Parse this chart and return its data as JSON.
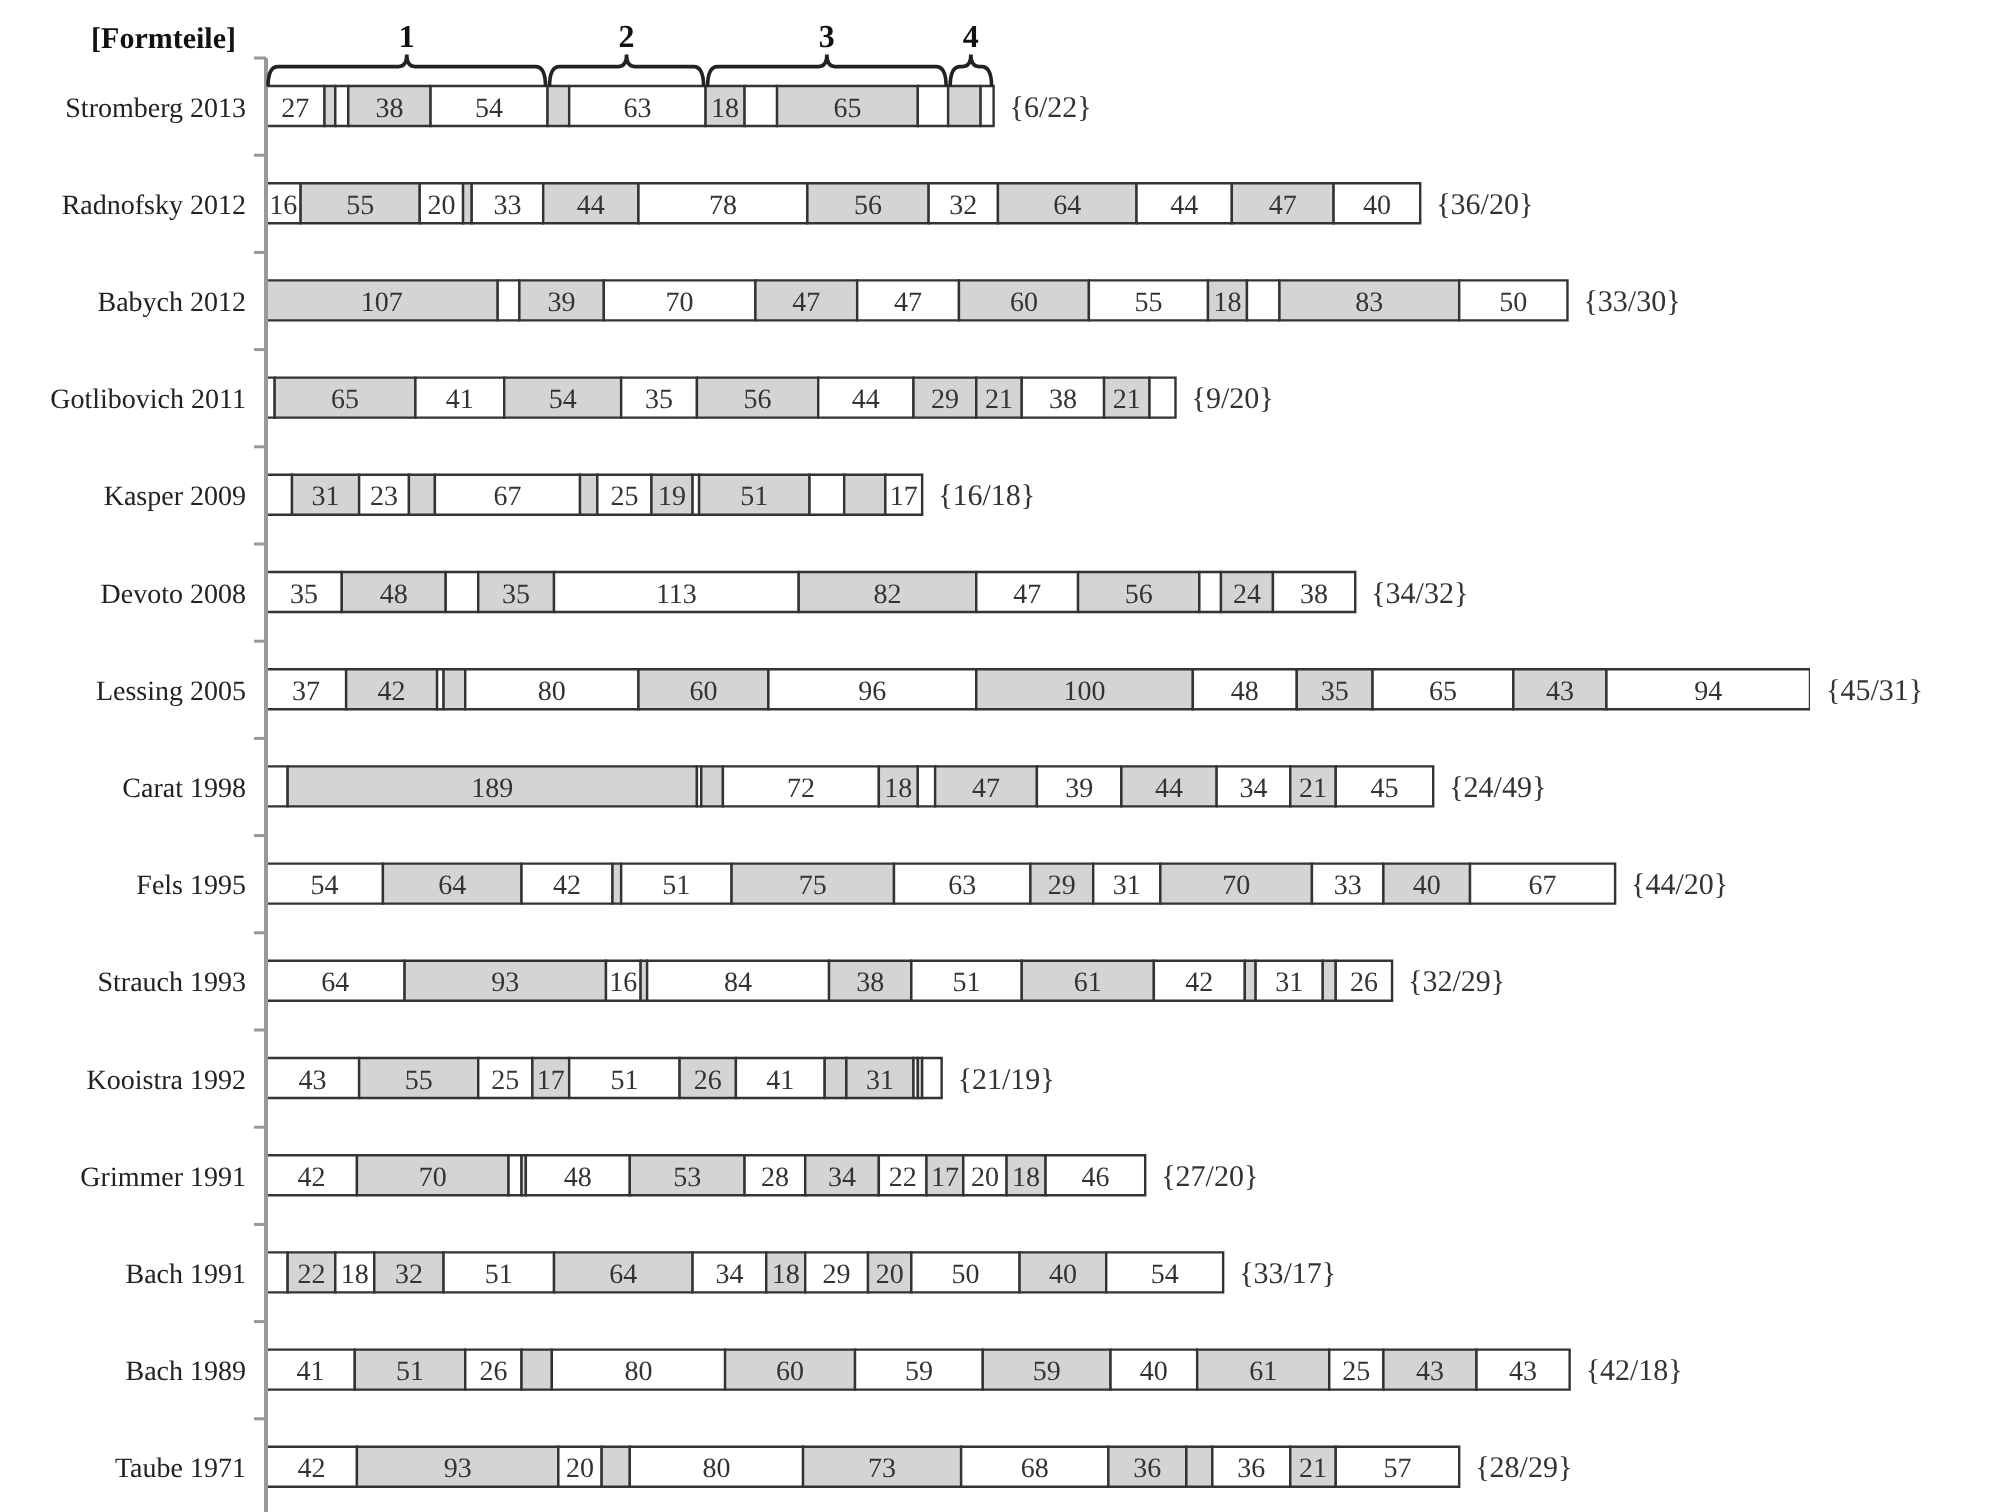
{
  "chart_data": {
    "type": "bar",
    "orientation": "horizontal",
    "stacked": true,
    "tick_labels": "y",
    "ylabel": "[Formteile]",
    "categories": [
      "Stromberg 2013",
      "Radnofsky 2012",
      "Babych 2012",
      "Gotlibovich 2011",
      "Kasper 2009",
      "Devoto 2008",
      "Lessing 2005",
      "Carat 1998",
      "Fels 1995",
      "Strauch 1993",
      "Kooistra 1992",
      "Grimmer 1991",
      "Bach 1991",
      "Bach 1989",
      "Taube 1971"
    ],
    "series": [
      {
        "values": [
          27,
          16,
          107,
          4,
          12,
          35,
          37,
          10,
          54,
          64,
          43,
          42,
          10,
          41,
          42
        ],
        "colors": [
          "#ffffff",
          "#ffffff",
          "#d4d4d4",
          "#ffffff",
          "#ffffff",
          "#ffffff",
          "#ffffff",
          "#ffffff",
          "#ffffff",
          "#ffffff",
          "#ffffff",
          "#ffffff",
          "#ffffff",
          "#ffffff",
          "#ffffff"
        ],
        "value_labels": [
          "27",
          "16",
          "107",
          null,
          null,
          "35",
          "37",
          null,
          "54",
          "64",
          "43",
          "42",
          null,
          "41",
          "42"
        ]
      },
      {
        "values": [
          5,
          55,
          10,
          65,
          31,
          48,
          42,
          189,
          64,
          93,
          55,
          70,
          22,
          51,
          93
        ],
        "colors": [
          "#d4d4d4",
          "#d4d4d4",
          "#ffffff",
          "#d4d4d4",
          "#d4d4d4",
          "#d4d4d4",
          "#d4d4d4",
          "#d4d4d4",
          "#d4d4d4",
          "#d4d4d4",
          "#d4d4d4",
          "#d4d4d4",
          "#d4d4d4",
          "#d4d4d4",
          "#d4d4d4"
        ],
        "value_labels": [
          null,
          "55",
          null,
          "65",
          "31",
          "48",
          "42",
          "189",
          "64",
          "93",
          "55",
          "70",
          "22",
          "51",
          "93"
        ]
      },
      {
        "values": [
          6,
          20,
          39,
          41,
          23,
          15,
          3,
          2,
          42,
          16,
          25,
          6,
          18,
          26,
          20
        ],
        "colors": [
          "#ffffff",
          "#ffffff",
          "#d4d4d4",
          "#ffffff",
          "#ffffff",
          "#ffffff",
          "#ffffff",
          "#ffffff",
          "#ffffff",
          "#ffffff",
          "#ffffff",
          "#ffffff",
          "#ffffff",
          "#ffffff",
          "#ffffff"
        ],
        "value_labels": [
          null,
          "20",
          "39",
          "41",
          "23",
          null,
          null,
          null,
          "42",
          "16",
          "25",
          null,
          "18",
          "26",
          "20"
        ]
      },
      {
        "values": [
          38,
          4,
          70,
          54,
          12,
          35,
          10,
          10,
          4,
          3,
          17,
          2,
          32,
          14,
          13
        ],
        "colors": [
          "#d4d4d4",
          "#d4d4d4",
          "#ffffff",
          "#d4d4d4",
          "#d4d4d4",
          "#d4d4d4",
          "#d4d4d4",
          "#d4d4d4",
          "#d4d4d4",
          "#d4d4d4",
          "#d4d4d4",
          "#d4d4d4",
          "#d4d4d4",
          "#d4d4d4",
          "#d4d4d4"
        ],
        "value_labels": [
          "38",
          null,
          "70",
          "54",
          null,
          "35",
          null,
          null,
          null,
          null,
          "17",
          null,
          "32",
          null,
          null
        ]
      },
      {
        "values": [
          54,
          33,
          47,
          35,
          67,
          113,
          80,
          72,
          51,
          84,
          51,
          48,
          51,
          80,
          80
        ],
        "colors": [
          "#ffffff",
          "#ffffff",
          "#d4d4d4",
          "#ffffff",
          "#ffffff",
          "#ffffff",
          "#ffffff",
          "#ffffff",
          "#ffffff",
          "#ffffff",
          "#ffffff",
          "#ffffff",
          "#ffffff",
          "#ffffff",
          "#ffffff"
        ],
        "value_labels": [
          "54",
          "33",
          "47",
          "35",
          "67",
          "113",
          "80",
          "72",
          "51",
          "84",
          "51",
          "48",
          "51",
          "80",
          "80"
        ]
      },
      {
        "values": [
          10,
          44,
          47,
          56,
          8,
          82,
          60,
          18,
          75,
          38,
          26,
          53,
          64,
          60,
          73
        ],
        "colors": [
          "#d4d4d4",
          "#d4d4d4",
          "#ffffff",
          "#d4d4d4",
          "#d4d4d4",
          "#d4d4d4",
          "#d4d4d4",
          "#d4d4d4",
          "#d4d4d4",
          "#d4d4d4",
          "#d4d4d4",
          "#d4d4d4",
          "#d4d4d4",
          "#d4d4d4",
          "#d4d4d4"
        ],
        "value_labels": [
          null,
          "44",
          "47",
          "56",
          null,
          "82",
          "60",
          "18",
          "75",
          "38",
          "26",
          "53",
          "64",
          "60",
          "73"
        ]
      },
      {
        "values": [
          63,
          78,
          60,
          44,
          25,
          47,
          96,
          8,
          63,
          51,
          41,
          28,
          34,
          59,
          68
        ],
        "colors": [
          "#ffffff",
          "#ffffff",
          "#d4d4d4",
          "#ffffff",
          "#ffffff",
          "#ffffff",
          "#ffffff",
          "#ffffff",
          "#ffffff",
          "#ffffff",
          "#ffffff",
          "#ffffff",
          "#ffffff",
          "#ffffff",
          "#ffffff"
        ],
        "value_labels": [
          "63",
          "78",
          "60",
          "44",
          "25",
          "47",
          "96",
          null,
          "63",
          "51",
          "41",
          "28",
          "34",
          "59",
          "68"
        ]
      },
      {
        "values": [
          18,
          56,
          55,
          29,
          19,
          56,
          100,
          47,
          29,
          61,
          10,
          34,
          18,
          59,
          36
        ],
        "colors": [
          "#d4d4d4",
          "#d4d4d4",
          "#ffffff",
          "#d4d4d4",
          "#d4d4d4",
          "#d4d4d4",
          "#d4d4d4",
          "#d4d4d4",
          "#d4d4d4",
          "#d4d4d4",
          "#d4d4d4",
          "#d4d4d4",
          "#d4d4d4",
          "#d4d4d4",
          "#d4d4d4"
        ],
        "value_labels": [
          "18",
          "56",
          "55",
          "29",
          "19",
          "56",
          "100",
          "47",
          "29",
          "61",
          null,
          "34",
          "18",
          "59",
          "36"
        ]
      },
      {
        "values": [
          15,
          32,
          18,
          21,
          3,
          10,
          48,
          39,
          31,
          42,
          31,
          22,
          29,
          40,
          12
        ],
        "colors": [
          "#ffffff",
          "#ffffff",
          "#d4d4d4",
          "#d4d4d4",
          "#ffffff",
          "#ffffff",
          "#ffffff",
          "#ffffff",
          "#ffffff",
          "#ffffff",
          "#d4d4d4",
          "#ffffff",
          "#ffffff",
          "#ffffff",
          "#d4d4d4"
        ],
        "value_labels": [
          null,
          "32",
          "18",
          "21",
          null,
          null,
          "48",
          "39",
          "31",
          "42",
          "31",
          "22",
          "29",
          "40",
          null
        ]
      },
      {
        "values": [
          65,
          64,
          15,
          38,
          51,
          24,
          35,
          44,
          70,
          5,
          2,
          17,
          20,
          61,
          36
        ],
        "colors": [
          "#d4d4d4",
          "#d4d4d4",
          "#ffffff",
          "#ffffff",
          "#d4d4d4",
          "#d4d4d4",
          "#d4d4d4",
          "#d4d4d4",
          "#d4d4d4",
          "#d4d4d4",
          "#ffffff",
          "#d4d4d4",
          "#d4d4d4",
          "#d4d4d4",
          "#ffffff"
        ],
        "value_labels": [
          "65",
          "64",
          null,
          "38",
          "51",
          "24",
          "35",
          "44",
          "70",
          null,
          null,
          "17",
          "20",
          "61",
          "36"
        ]
      },
      {
        "values": [
          14,
          44,
          83,
          21,
          16,
          38,
          65,
          34,
          33,
          31,
          2,
          20,
          50,
          25,
          21
        ],
        "colors": [
          "#ffffff",
          "#ffffff",
          "#d4d4d4",
          "#d4d4d4",
          "#ffffff",
          "#ffffff",
          "#ffffff",
          "#ffffff",
          "#ffffff",
          "#ffffff",
          "#d4d4d4",
          "#ffffff",
          "#ffffff",
          "#ffffff",
          "#d4d4d4"
        ],
        "value_labels": [
          null,
          "44",
          "83",
          "21",
          null,
          "38",
          "65",
          "34",
          "33",
          "31",
          null,
          "20",
          "50",
          "25",
          "21"
        ]
      },
      {
        "values": [
          15,
          47,
          50,
          12,
          19,
          null,
          43,
          21,
          40,
          6,
          9,
          18,
          40,
          43,
          57
        ],
        "colors": [
          "#d4d4d4",
          "#d4d4d4",
          "#ffffff",
          "#ffffff",
          "#d4d4d4",
          "#ffffff",
          "#d4d4d4",
          "#d4d4d4",
          "#d4d4d4",
          "#d4d4d4",
          "#ffffff",
          "#d4d4d4",
          "#d4d4d4",
          "#d4d4d4",
          "#ffffff"
        ],
        "value_labels": [
          null,
          "47",
          "50",
          null,
          null,
          null,
          "43",
          "21",
          "40",
          null,
          null,
          "18",
          "40",
          "43",
          "57"
        ]
      },
      {
        "values": [
          6,
          40,
          null,
          null,
          17,
          null,
          94,
          45,
          67,
          26,
          null,
          46,
          54,
          43,
          null
        ],
        "colors": [
          "#ffffff",
          "#ffffff",
          "#ffffff",
          "#ffffff",
          "#ffffff",
          "#ffffff",
          "#ffffff",
          "#ffffff",
          "#ffffff",
          "#ffffff",
          "#ffffff",
          "#ffffff",
          "#ffffff",
          "#ffffff",
          "#ffffff"
        ],
        "value_labels": [
          null,
          "40",
          null,
          null,
          "17",
          null,
          "94",
          "45",
          "67",
          "26",
          null,
          "46",
          "54",
          "43",
          null
        ]
      }
    ],
    "annotations": [
      "1",
      "2",
      "3",
      "4",
      "{6/22}",
      "{36/20}",
      "{33/30}",
      "{9/20}",
      "{16/18}",
      "{34/32}",
      "{45/31}",
      "{24/49}",
      "{44/20}",
      "{32/29}",
      "{21/19}",
      "{27/20}",
      "{33/17}",
      "{42/18}",
      "{28/29}"
    ]
  }
}
